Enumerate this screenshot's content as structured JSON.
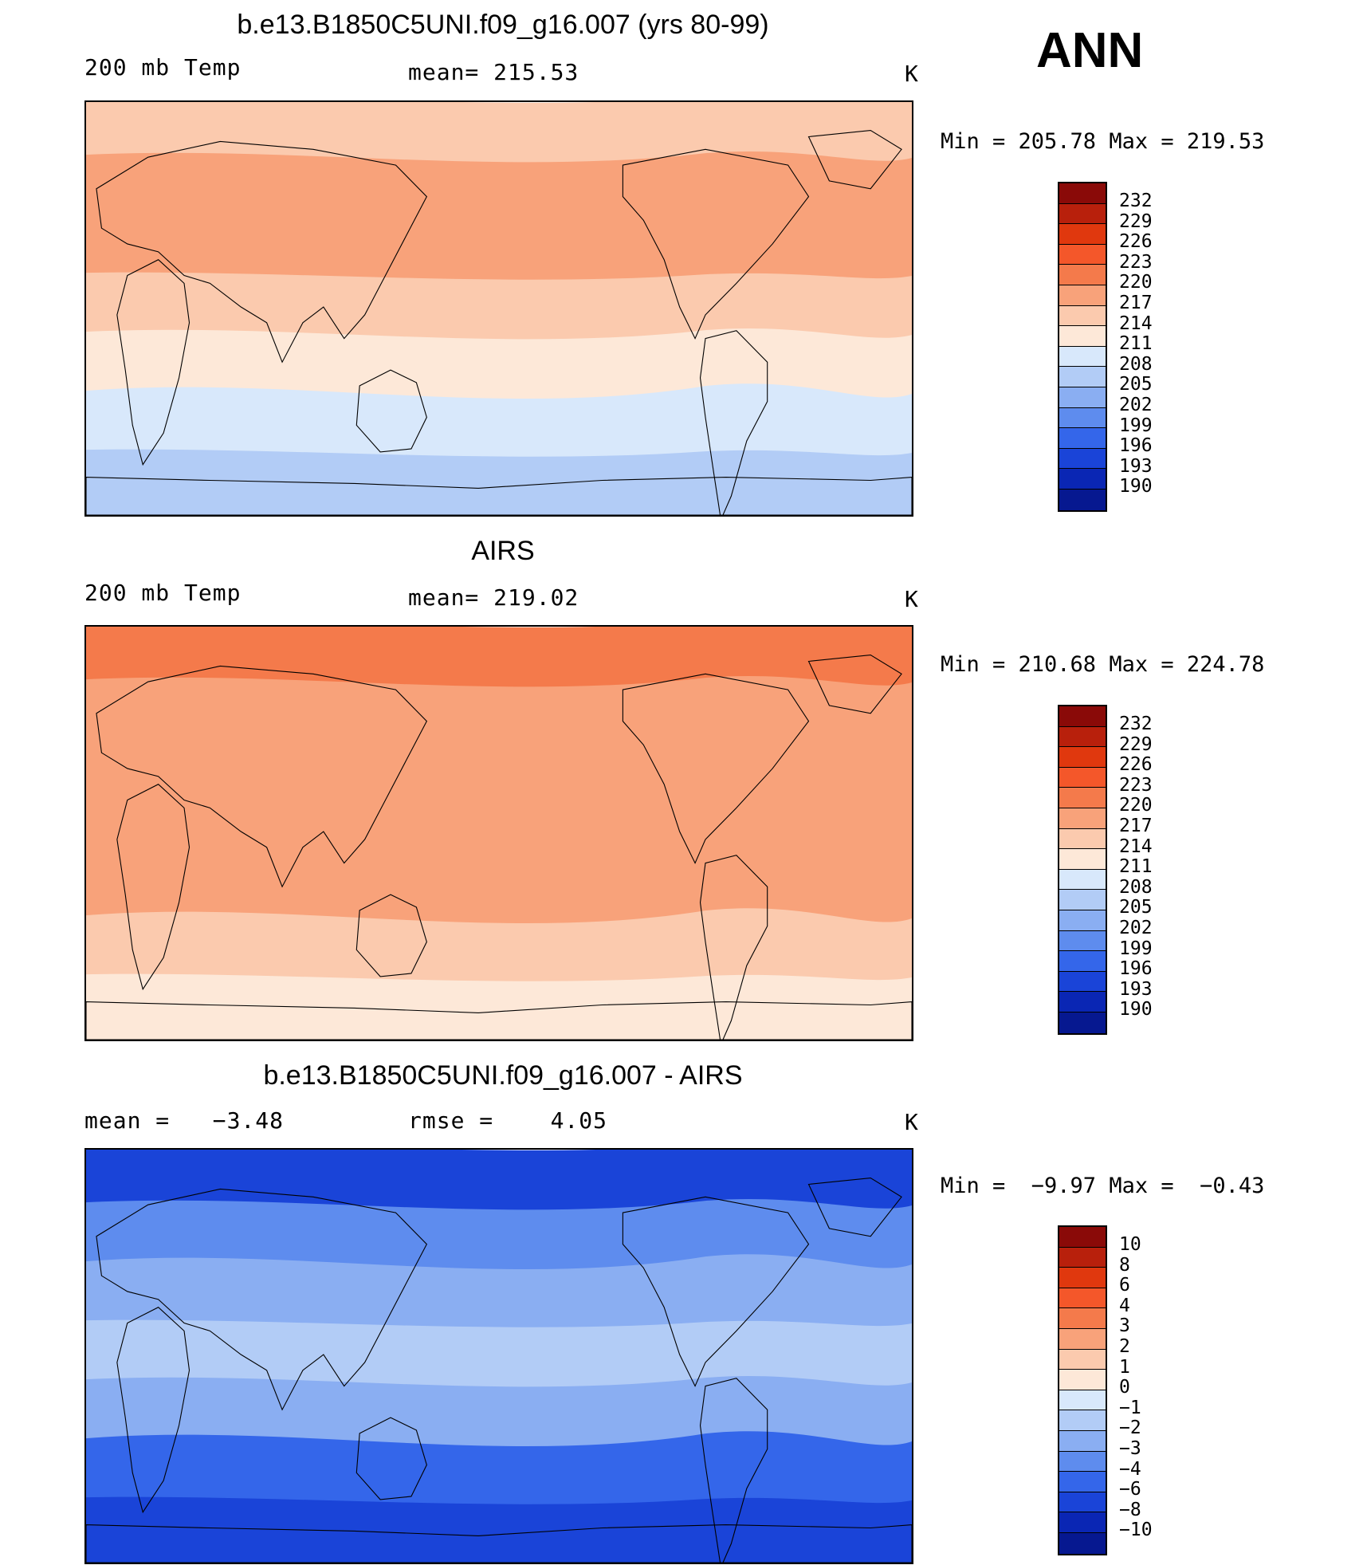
{
  "season": "ANN",
  "panels": [
    {
      "title": "b.e13.B1850C5UNI.f09_g16.007 (yrs 80-99)",
      "left_label": "200 mb Temp",
      "center_label": "mean= 215.53",
      "units": "K",
      "minmax": "Min = 205.78 Max = 219.53",
      "field": "model"
    },
    {
      "title": "AIRS",
      "left_label": "200 mb Temp",
      "center_label": "mean= 219.02",
      "units": "K",
      "minmax": "Min = 210.68 Max = 224.78",
      "field": "obs"
    },
    {
      "title": "b.e13.B1850C5UNI.f09_g16.007 - AIRS",
      "left_label": "mean =   −3.48",
      "center_label": "rmse =    4.05",
      "units": "K",
      "minmax": "Min =  −9.97 Max =  −0.43",
      "field": "diff"
    }
  ],
  "colorbars": {
    "temp": {
      "labels": [
        "232",
        "229",
        "226",
        "223",
        "220",
        "217",
        "214",
        "211",
        "208",
        "205",
        "202",
        "199",
        "196",
        "193",
        "190"
      ],
      "colors": [
        "#8a0a08",
        "#b8200c",
        "#e0380e",
        "#f4572a",
        "#f47a4b",
        "#f8a27a",
        "#fbcaae",
        "#fde8d8",
        "#d8e8fb",
        "#b2ccf6",
        "#8aaef2",
        "#5e8cee",
        "#3466ea",
        "#1a44d8",
        "#0a26b4",
        "#061890"
      ]
    },
    "diff": {
      "labels": [
        "10",
        "8",
        "6",
        "4",
        "3",
        "2",
        "1",
        "0",
        "−1",
        "−2",
        "−3",
        "−4",
        "−6",
        "−8",
        "−10"
      ],
      "colors": [
        "#8a0a08",
        "#b8200c",
        "#e0380e",
        "#f4572a",
        "#f47a4b",
        "#f8a27a",
        "#fbcaae",
        "#fde8d8",
        "#d8e8fb",
        "#b2ccf6",
        "#8aaef2",
        "#5e8cee",
        "#3466ea",
        "#1a44d8",
        "#0a26b4",
        "#061890"
      ]
    }
  },
  "map_fields": {
    "model": {
      "bands": [
        {
          "color": "#fbcaae"
        },
        {
          "color": "#f8a27a"
        },
        {
          "color": "#f8a27a"
        },
        {
          "color": "#fbcaae"
        },
        {
          "color": "#fde8d8"
        },
        {
          "color": "#d8e8fb"
        },
        {
          "color": "#b2ccf6"
        }
      ]
    },
    "obs": {
      "bands": [
        {
          "color": "#f47a4b"
        },
        {
          "color": "#f8a27a"
        },
        {
          "color": "#f8a27a"
        },
        {
          "color": "#f8a27a"
        },
        {
          "color": "#f8a27a"
        },
        {
          "color": "#fbcaae"
        },
        {
          "color": "#fde8d8"
        }
      ]
    },
    "diff": {
      "bands": [
        {
          "color": "#1a44d8"
        },
        {
          "color": "#5e8cee"
        },
        {
          "color": "#8aaef2"
        },
        {
          "color": "#b2ccf6"
        },
        {
          "color": "#8aaef2"
        },
        {
          "color": "#3466ea"
        },
        {
          "color": "#1a44d8"
        }
      ]
    }
  }
}
